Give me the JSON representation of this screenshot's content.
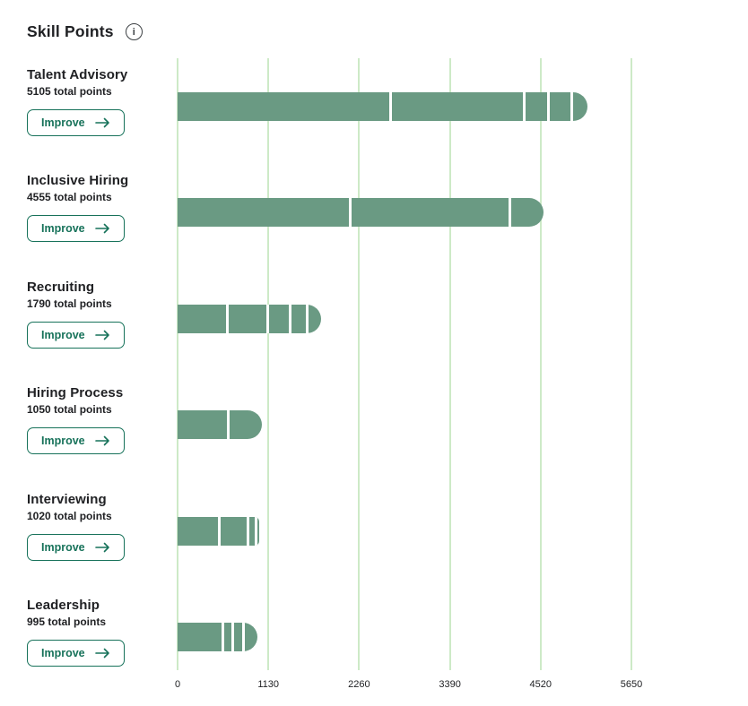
{
  "header": {
    "title": "Skill Points",
    "info_icon_glyph": "i"
  },
  "buttons": {
    "improve_label": "Improve"
  },
  "colors": {
    "bar": "#6A9A83",
    "gridline": "#CDEAC7",
    "accent": "#17725A",
    "text_dark": "#202124",
    "background": "#FFFFFF"
  },
  "chart_data": {
    "type": "bar",
    "orientation": "horizontal",
    "title": "Skill Points",
    "xlabel": "",
    "ylabel": "",
    "xlim": [
      0,
      5650
    ],
    "x_ticks": [
      0,
      1130,
      2260,
      3390,
      4520,
      5650
    ],
    "grid": true,
    "legend": false,
    "bar_color": "#6A9A83",
    "categories": [
      "Talent Advisory",
      "Inclusive Hiring",
      "Recruiting",
      "Hiring Process",
      "Interviewing",
      "Leadership"
    ],
    "totals": [
      5105,
      4555,
      1790,
      1050,
      1020,
      995
    ],
    "skills": [
      {
        "name": "Talent Advisory",
        "total": 5105,
        "total_label": "5105 total points",
        "segments": [
          2640,
          1655,
          310,
          290,
          210
        ]
      },
      {
        "name": "Inclusive Hiring",
        "total": 4555,
        "total_label": "4555 total points",
        "segments": [
          2135,
          1980,
          440
        ]
      },
      {
        "name": "Recruiting",
        "total": 1790,
        "total_label": "1790 total points",
        "segments": [
          600,
          510,
          270,
          220,
          190
        ]
      },
      {
        "name": "Hiring Process",
        "total": 1050,
        "total_label": "1050 total points",
        "segments": [
          615,
          435
        ]
      },
      {
        "name": "Interviewing",
        "total": 1020,
        "total_label": "1020 total points",
        "segments": [
          500,
          355,
          100,
          65
        ]
      },
      {
        "name": "Leadership",
        "total": 995,
        "total_label": "995 total points",
        "segments": [
          545,
          120,
          135,
          195
        ]
      }
    ]
  }
}
